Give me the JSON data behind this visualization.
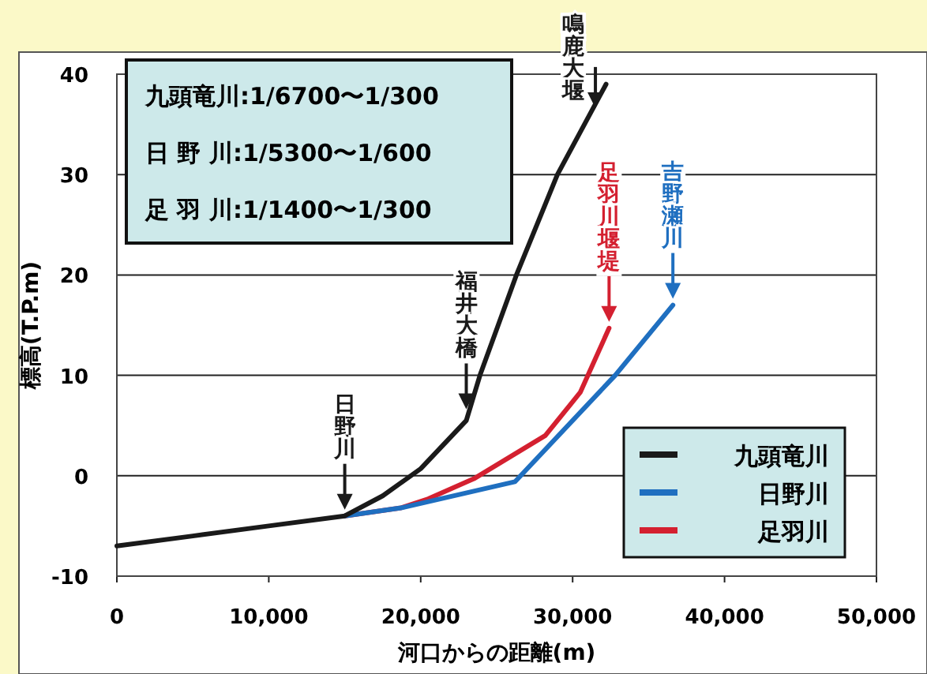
{
  "chart_data": {
    "type": "line",
    "xlabel": "河口からの距離(m)",
    "ylabel": "標高(T.P.m)",
    "xlim": [
      0,
      50000
    ],
    "xticks": [
      {
        "value": 0,
        "label": "0"
      },
      {
        "value": 10000,
        "label": "10,000"
      },
      {
        "value": 20000,
        "label": "20,000"
      },
      {
        "value": 30000,
        "label": "30,000"
      },
      {
        "value": 40000,
        "label": "40,000"
      },
      {
        "value": 50000,
        "label": "50,000"
      }
    ],
    "ylim": [
      -10,
      40
    ],
    "yticks": [
      -10,
      0,
      10,
      20,
      30,
      40
    ],
    "grid": "y",
    "legend": "bottom right",
    "marker": "none",
    "line_style": "solid",
    "series": [
      {
        "name": "九頭竜川",
        "color": "#1a1a1a",
        "x": [
          0,
          5000,
          10000,
          15000,
          17500,
          20000,
          23000,
          23900,
          26300,
          29000,
          32200
        ],
        "values": [
          -7,
          -6,
          -5,
          -4,
          -2,
          0.7,
          5.5,
          10,
          20,
          30,
          39
        ]
      },
      {
        "name": "日野川",
        "color": "#1f6fc0",
        "x": [
          15000,
          18700,
          26200,
          32800,
          36600
        ],
        "values": [
          -4,
          -3.2,
          -0.6,
          10,
          17
        ]
      },
      {
        "name": "足羽川",
        "color": "#d42030",
        "x": [
          15000,
          18700,
          20500,
          23500,
          28200,
          30500,
          32400
        ],
        "values": [
          -4,
          -3.2,
          -2.3,
          -0.3,
          4,
          8.3,
          14.7
        ]
      }
    ],
    "annotations": [
      "九頭竜川:1/6700〜1/300",
      "日 野 川:1/5300〜1/600",
      "足 羽 川:1/1400〜1/300",
      {
        "text": "日野川",
        "x": 15000,
        "y": -4
      },
      {
        "text": "福井大橋",
        "x": 23000,
        "y": 6
      },
      {
        "text": "鳴鹿大堰",
        "x": 31500,
        "y": 36
      },
      {
        "text": "足羽川堰堤",
        "x": 32400,
        "y": 14.7
      },
      {
        "text": "吉野瀬川",
        "x": 36600,
        "y": 17
      }
    ]
  }
}
